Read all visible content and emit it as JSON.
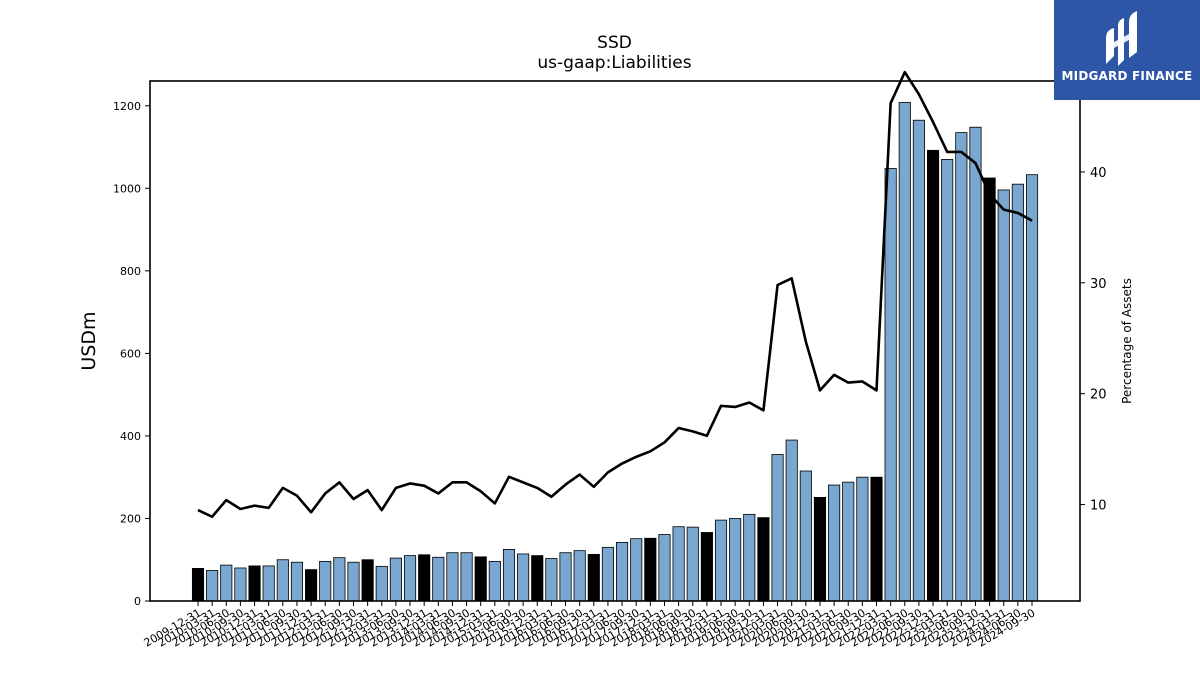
{
  "title": "SSD",
  "subtitle": "us-gaap:Liabilities",
  "logo": {
    "text": "MIDGARD FINANCE",
    "bg_color": "#2e56a6"
  },
  "colors": {
    "bar_light": "#7aa7d0",
    "bar_dark": "#000000",
    "line": "#000000"
  },
  "chart_data": {
    "type": "bar",
    "ylabel": "USDm",
    "ylabel_right": "Percentage of Assets",
    "ylim": [
      0,
      1260
    ],
    "yticks": [
      0,
      200,
      400,
      600,
      800,
      1000,
      1200
    ],
    "ylim_right": [
      1.3,
      48.2
    ],
    "yticks_right": [
      10,
      20,
      30,
      40
    ],
    "categories": [
      "2009-12-31",
      "2010-03-31",
      "2010-06-30",
      "2010-09-30",
      "2010-12-31",
      "2011-03-31",
      "2011-06-30",
      "2011-09-30",
      "2011-12-31",
      "2012-03-31",
      "2012-06-30",
      "2012-09-30",
      "2012-12-31",
      "2013-03-31",
      "2013-06-30",
      "2013-09-30",
      "2013-12-31",
      "2014-03-31",
      "2014-06-30",
      "2014-09-30",
      "2014-12-31",
      "2015-03-31",
      "2015-06-30",
      "2015-09-30",
      "2015-12-31",
      "2016-03-31",
      "2016-06-30",
      "2016-09-30",
      "2016-12-31",
      "2017-03-31",
      "2017-06-30",
      "2017-09-30",
      "2017-12-31",
      "2018-03-31",
      "2018-06-30",
      "2018-09-30",
      "2018-12-31",
      "2019-03-31",
      "2019-06-30",
      "2019-09-30",
      "2019-12-31",
      "2020-03-31",
      "2020-06-30",
      "2020-09-30",
      "2020-12-31",
      "2021-03-31",
      "2021-06-30",
      "2021-09-30",
      "2021-12-31",
      "2022-03-31",
      "2022-06-30",
      "2022-09-30",
      "2022-12-31",
      "2023-03-31",
      "2023-06-30",
      "2023-09-30",
      "2023-12-31",
      "2024-03-31",
      "2024-06-30",
      "2024-09-30"
    ],
    "x_tick_labels": [
      "2009-12-31",
      "2010-03-31",
      "2010-06-30",
      "2010-09-30",
      "2010-12-31",
      "2011-03-31",
      "2011-06-30",
      "2011-09-30",
      "2011-12-31",
      "2012-03-31",
      "2012-06-30",
      "2012-09-30",
      "2012-12-31",
      "2013-03-31",
      "2013-06-30",
      "2013-09-30",
      "2013-12-31",
      "2014-03-31",
      "2014-06-30",
      "2014-09-30",
      "2014-12-31",
      "2015-03-31",
      "2015-06-30",
      "2015-09-30",
      "2015-12-31",
      "2016-03-31",
      "2016-06-30",
      "2016-09-30",
      "2016-12-31",
      "2017-03-31",
      "2017-06-30",
      "2017-09-30",
      "2017-12-31",
      "2018-03-31",
      "2018-06-30",
      "2018-09-30",
      "2018-12-31",
      "2019-03-31",
      "2019-06-30",
      "2019-09-30",
      "2019-12-31",
      "2020-03-31",
      "2020-06-30",
      "2020-09-30",
      "2020-12-31",
      "2021-03-31",
      "2021-06-30",
      "2021-09-30",
      "2021-12-31",
      "2022-03-31",
      "2022-06-30",
      "2022-09-30",
      "2022-12-31",
      "2023-03-31",
      "2023-06-30",
      "2023-09-30",
      "2023-12-31",
      "2024-03-31",
      "2024-06-30",
      "2024-09-30"
    ],
    "series": [
      {
        "type": "bar",
        "axis": "left",
        "values": [
          79,
          74,
          87,
          80,
          85,
          85,
          100,
          94,
          76,
          96,
          105,
          94,
          100,
          84,
          104,
          110,
          112,
          106,
          117,
          117,
          107,
          96,
          125,
          114,
          110,
          103,
          117,
          122,
          113,
          130,
          142,
          151,
          152,
          161,
          180,
          179,
          166,
          196,
          200,
          210,
          202,
          355,
          390,
          315,
          251,
          281,
          288,
          300,
          300,
          1048,
          1208,
          1165,
          1092,
          1070,
          1135,
          1148,
          1025,
          996,
          1010,
          1033
        ]
      },
      {
        "type": "line",
        "axis": "right",
        "values": [
          9.5,
          8.9,
          10.4,
          9.6,
          9.9,
          9.7,
          11.5,
          10.8,
          9.3,
          11.0,
          12.0,
          10.5,
          11.3,
          9.5,
          11.5,
          11.9,
          11.7,
          11.0,
          12.0,
          12.0,
          11.2,
          10.1,
          12.5,
          12.0,
          11.5,
          10.7,
          11.8,
          12.7,
          11.6,
          12.9,
          13.7,
          14.3,
          14.8,
          15.6,
          16.9,
          16.6,
          16.2,
          18.9,
          18.8,
          19.2,
          18.5,
          29.8,
          30.4,
          24.7,
          20.3,
          21.7,
          21.0,
          21.1,
          20.3,
          46.2,
          49.0,
          47.0,
          44.5,
          41.8,
          41.8,
          40.8,
          38.0,
          36.6,
          36.3,
          35.6
        ]
      }
    ],
    "dark_bar_indices": [
      0,
      4,
      8,
      12,
      16,
      20,
      24,
      28,
      32,
      36,
      40,
      44,
      48,
      52,
      56
    ],
    "grid": false,
    "legend": "none"
  }
}
